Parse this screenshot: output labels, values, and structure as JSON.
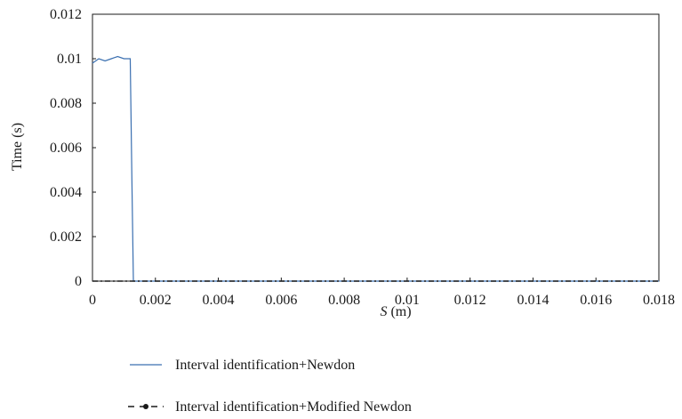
{
  "chart_data": {
    "type": "line",
    "xlabel_italic": "S",
    "xlabel_rest": " (m)",
    "ylabel": "Time (s)",
    "xlim": [
      0,
      0.018
    ],
    "ylim": [
      0,
      0.012
    ],
    "xticks": [
      0,
      0.002,
      0.004,
      0.006,
      0.008,
      0.01,
      0.012,
      0.014,
      0.016,
      0.018
    ],
    "yticks": [
      0,
      0.002,
      0.004,
      0.006,
      0.008,
      0.01,
      0.012
    ],
    "xtick_labels": [
      "0",
      "0.002",
      "0.004",
      "0.006",
      "0.008",
      "0.01",
      "0.012",
      "0.014",
      "0.016",
      "0.018"
    ],
    "ytick_labels": [
      "0",
      "0.002",
      "0.004",
      "0.006",
      "0.008",
      "0.01",
      "0.012"
    ],
    "grid": false,
    "legend_position": "bottom",
    "series": [
      {
        "name": "Interval identification+Newdon",
        "color": "#3a6fb0",
        "style": "solid",
        "x": [
          0,
          0.0002,
          0.0004,
          0.0006,
          0.0008,
          0.001,
          0.0012,
          0.00125,
          0.0013,
          0.0014,
          0.003,
          0.006,
          0.009,
          0.012,
          0.015,
          0.018
        ],
        "y": [
          0.0098,
          0.01,
          0.0099,
          0.01,
          0.0101,
          0.01,
          0.01,
          0.0048,
          0.0,
          0.0,
          0.0,
          0.0,
          0.0,
          0.0,
          0.0,
          0.0
        ]
      },
      {
        "name": "Interval identification+Modified Newdon",
        "color": "#1a1a1a",
        "style": "dash-dot",
        "x": [
          0,
          0.002,
          0.004,
          0.006,
          0.008,
          0.01,
          0.012,
          0.014,
          0.016,
          0.018
        ],
        "y": [
          0,
          0,
          0,
          0,
          0,
          0,
          0,
          0,
          0,
          0
        ]
      }
    ]
  }
}
